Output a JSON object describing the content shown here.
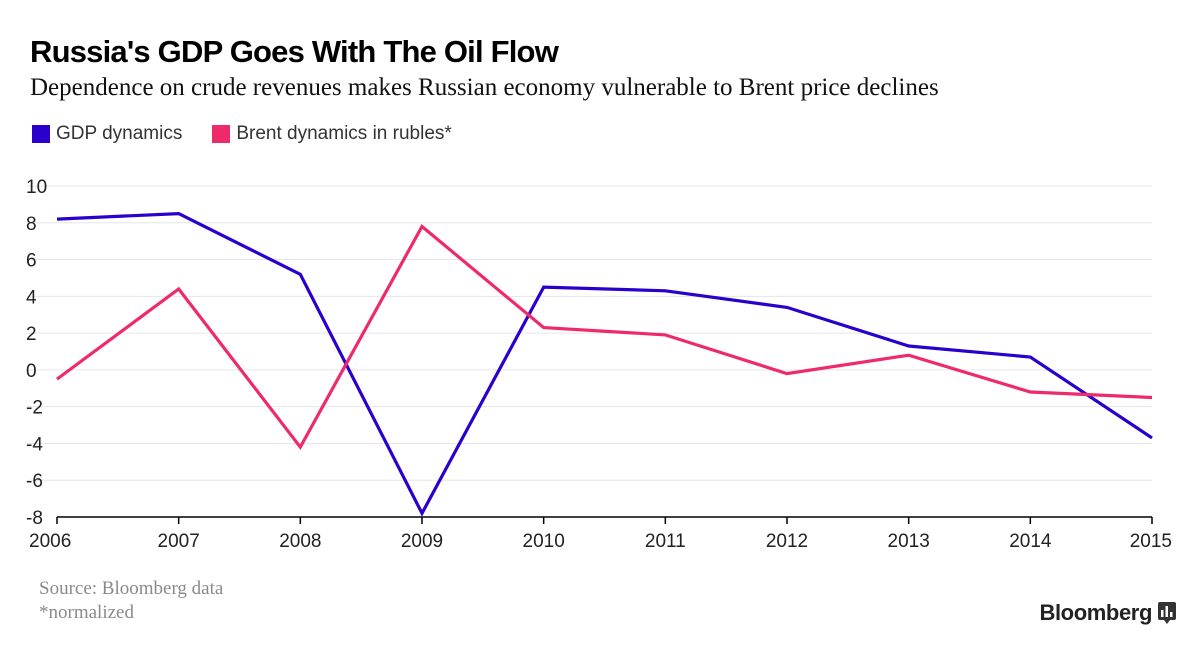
{
  "header": {
    "title": "Russia's GDP Goes With The Oil Flow",
    "subtitle": "Dependence on crude revenues makes Russian economy vulnerable to Brent price declines"
  },
  "footer": {
    "source": "Source: Bloomberg data",
    "note": "*normalized",
    "brand": "Bloomberg"
  },
  "colors": {
    "gdp": "#2a00cc",
    "brent": "#ee2a6b",
    "grid": "#e6e6e6",
    "axis": "#000000"
  },
  "chart_data": {
    "type": "line",
    "title": "Russia's GDP Goes With The Oil Flow",
    "xlabel": "",
    "ylabel": "",
    "x": [
      "2006",
      "2007",
      "2008",
      "2009",
      "2010",
      "2011",
      "2012",
      "2013",
      "2014",
      "2015"
    ],
    "ylim": [
      -8,
      10
    ],
    "yticks": [
      10,
      8,
      6,
      4,
      2,
      0,
      -2,
      -4,
      -6,
      -8
    ],
    "grid": true,
    "legend": "top-left",
    "series": [
      {
        "name": "GDP dynamics",
        "color": "#2a00cc",
        "values": [
          8.2,
          8.5,
          5.2,
          -7.8,
          4.5,
          4.3,
          3.4,
          1.3,
          0.7,
          -3.7
        ]
      },
      {
        "name": "Brent dynamics in rubles*",
        "color": "#ee2a6b",
        "values": [
          -0.5,
          4.4,
          -4.2,
          7.8,
          2.3,
          1.9,
          -0.2,
          0.8,
          -1.2,
          -1.5
        ]
      }
    ]
  }
}
